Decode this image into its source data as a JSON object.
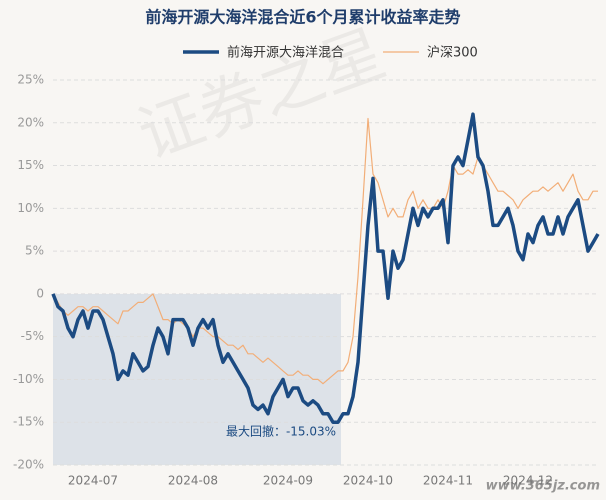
{
  "chart_data": {
    "type": "line",
    "title": "前海开源大海洋混合近6个月累计收益率走势",
    "annotation": "最大回撤：-15.03%",
    "watermark": "证券之星",
    "site": "www.365jz.com",
    "categories": [
      null,
      null,
      null,
      null,
      null,
      null,
      null,
      null,
      "2024-07",
      null,
      null,
      null,
      null,
      null,
      null,
      null,
      null,
      null,
      null,
      null,
      null,
      null,
      null,
      null,
      null,
      null,
      null,
      null,
      "2024-08",
      null,
      null,
      null,
      null,
      null,
      null,
      null,
      null,
      null,
      null,
      null,
      null,
      null,
      null,
      null,
      null,
      null,
      null,
      "2024-09",
      null,
      null,
      null,
      null,
      null,
      null,
      null,
      null,
      null,
      null,
      null,
      null,
      null,
      null,
      null,
      "2024-10",
      null,
      null,
      null,
      null,
      null,
      null,
      null,
      null,
      null,
      null,
      null,
      null,
      null,
      null,
      null,
      "2024-11",
      null,
      null,
      null,
      null,
      null,
      null,
      null,
      null,
      null,
      null,
      null,
      null,
      null,
      null,
      null,
      "2024-12",
      null,
      null,
      null,
      null,
      null,
      null,
      null,
      null,
      null,
      null,
      null,
      null,
      null,
      null
    ],
    "series": [
      {
        "name": "前海开源大海洋混合",
        "color": "#1c4b82",
        "values": [
          0,
          -1.5,
          -2,
          -4,
          -5,
          -3,
          -2,
          -4,
          -2,
          -2,
          -3,
          -5,
          -7,
          -10,
          -9,
          -9.5,
          -7,
          -8,
          -9,
          -8.5,
          -6,
          -4,
          -5,
          -7,
          -3,
          -3,
          -3,
          -4,
          -6,
          -4,
          -3,
          -4,
          -3,
          -6,
          -8,
          -7,
          -8,
          -9,
          -10,
          -11,
          -13,
          -13.5,
          -13,
          -14,
          -12,
          -11,
          -10,
          -12,
          -11,
          -11,
          -12.5,
          -13,
          -12.5,
          -13,
          -14,
          -14,
          -15,
          -15,
          -14,
          -14,
          -12,
          -8,
          0,
          8,
          13.5,
          5,
          5,
          -0.5,
          5,
          3,
          4,
          7,
          10,
          8,
          10,
          9,
          10,
          10,
          11,
          6,
          15,
          16,
          15,
          18,
          21,
          16,
          15,
          12,
          8,
          8,
          9,
          10,
          8,
          5,
          4,
          7,
          6,
          8,
          9,
          7,
          7,
          9,
          7,
          9,
          10,
          11,
          8,
          5,
          6,
          7
        ]
      },
      {
        "name": "沪深300",
        "color": "#f2ae78",
        "values": [
          0,
          -1,
          -2,
          -2.5,
          -2,
          -1.5,
          -1.5,
          -2,
          -1.5,
          -1.5,
          -2,
          -2.5,
          -3,
          -3.5,
          -2,
          -2,
          -1.5,
          -1,
          -1,
          -0.5,
          0,
          -1.5,
          -3,
          -3,
          -3.5,
          -3,
          -3.5,
          -4,
          -5,
          -4,
          -4,
          -4.5,
          -5,
          -5,
          -5.5,
          -6,
          -6,
          -6.5,
          -6,
          -7,
          -7,
          -7.5,
          -8,
          -7.5,
          -8,
          -8.5,
          -9,
          -9.5,
          -9.5,
          -9,
          -9.5,
          -9.5,
          -10,
          -10,
          -10.5,
          -10,
          -9.5,
          -9,
          -9,
          -8,
          -5,
          2,
          11,
          20.5,
          14,
          13,
          11,
          9,
          10,
          9,
          9,
          11,
          12,
          10,
          11,
          10,
          10,
          11,
          10,
          12,
          15,
          14,
          14,
          14.5,
          14,
          16,
          15,
          14,
          13,
          12,
          12,
          11.5,
          11,
          10,
          11,
          11.5,
          12,
          12,
          12.5,
          12,
          12.5,
          13,
          12,
          13,
          14,
          12,
          11,
          11,
          12,
          12
        ]
      }
    ],
    "ylim": [
      -20,
      25
    ],
    "yticks": [
      {
        "value": -20,
        "label": "-20%"
      },
      {
        "value": -15,
        "label": "-15%"
      },
      {
        "value": -10,
        "label": "-10%"
      },
      {
        "value": -5,
        "label": "-5%"
      },
      {
        "value": 0,
        "label": "0"
      },
      {
        "value": 5,
        "label": "5%"
      },
      {
        "value": 10,
        "label": "10%"
      },
      {
        "value": 15,
        "label": "15%"
      },
      {
        "value": 20,
        "label": "20%"
      },
      {
        "value": 25,
        "label": "25%"
      }
    ],
    "grid": true
  }
}
